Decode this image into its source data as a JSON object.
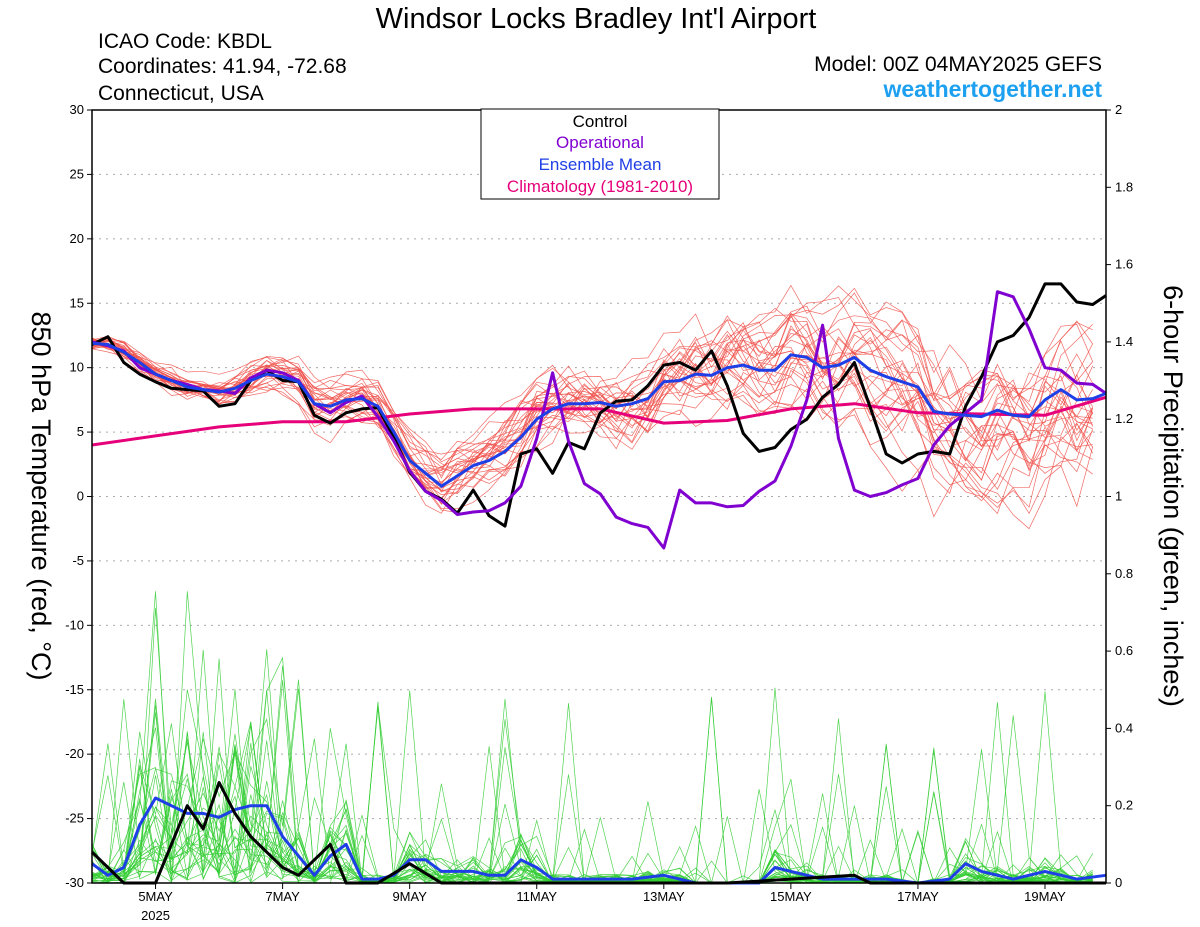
{
  "header": {
    "title": "Windsor Locks Bradley Int'l Airport",
    "icao": "ICAO Code: KBDL",
    "coords": "Coordinates: 41.94, -72.68",
    "location": "Connecticut, USA",
    "model": "Model: 00Z 04MAY2025 GEFS",
    "site": "weathertogether.net"
  },
  "colors": {
    "control": "#000000",
    "operational": "#8000d0",
    "ensemble_mean": "#1f3fe6",
    "climatology": "#e6007a",
    "members_temp": "#f0504a",
    "members_precip": "#33cc33",
    "site": "#1ea0f0"
  },
  "chart_data": {
    "type": "line",
    "title": "Windsor Locks Bradley Int'l Airport",
    "ylabel": "850 hPa Temperature (red, °C)",
    "y2label": "6-hour Precipitation (green, inches)",
    "ylim": [
      -30,
      30
    ],
    "y2lim": [
      0,
      2
    ],
    "yticks": [
      "30",
      "25",
      "20",
      "15",
      "10",
      "5",
      "0",
      "-5",
      "-10",
      "-15",
      "-20",
      "-25",
      "-30"
    ],
    "y2ticks": [
      "2",
      "1.8",
      "1.6",
      "1.4",
      "1.2",
      "1",
      "0.8",
      "0.6",
      "0.4",
      "0.2",
      "0"
    ],
    "xlim_days": [
      4.0,
      19.96
    ],
    "xticks": [
      {
        "day": 5,
        "label": "5MAY",
        "sub": "2025"
      },
      {
        "day": 7,
        "label": "7MAY"
      },
      {
        "day": 9,
        "label": "9MAY"
      },
      {
        "day": 11,
        "label": "11MAY"
      },
      {
        "day": 13,
        "label": "13MAY"
      },
      {
        "day": 15,
        "label": "15MAY"
      },
      {
        "day": 17,
        "label": "17MAY"
      },
      {
        "day": 19,
        "label": "19MAY"
      }
    ],
    "legend": {
      "placement": "top-center",
      "entries": [
        "Control",
        "Operational",
        "Ensemble Mean",
        "Climatology (1981-2010)"
      ]
    },
    "grid": true,
    "series": [
      {
        "name": "Control",
        "axis": "temperature",
        "x": [
          4.0,
          4.25,
          4.5,
          4.75,
          5.0,
          5.25,
          5.5,
          5.75,
          6.0,
          6.25,
          6.5,
          6.75,
          7.0,
          7.25,
          7.5,
          7.75,
          8.0,
          8.25,
          8.5,
          8.75,
          9.0,
          9.25,
          9.5,
          9.75,
          10.0,
          10.25,
          10.5,
          10.75,
          11.0,
          11.25,
          11.5,
          11.75,
          12.0,
          12.25,
          12.5,
          12.75,
          13.0,
          13.25,
          13.5,
          13.75,
          14.0,
          14.25,
          14.5,
          14.75,
          15.0,
          15.25,
          15.5,
          15.75,
          16.0,
          16.25,
          16.5,
          16.75,
          17.0,
          17.25,
          17.5,
          17.75,
          18.0,
          18.25,
          18.5,
          18.75,
          19.0,
          19.25,
          19.5,
          19.75,
          19.96
        ],
        "values": [
          11.8,
          12.4,
          10.4,
          9.5,
          8.9,
          8.4,
          8.3,
          8.2,
          7.0,
          7.2,
          9.0,
          9.8,
          9.0,
          8.9,
          6.3,
          5.7,
          6.5,
          6.8,
          6.9,
          4.6,
          1.9,
          0.4,
          -0.2,
          -1.3,
          0.5,
          -1.5,
          -2.3,
          3.3,
          3.7,
          1.8,
          4.2,
          3.7,
          6.5,
          7.4,
          7.5,
          8.6,
          10.2,
          10.4,
          9.8,
          11.3,
          8.6,
          4.9,
          3.5,
          3.8,
          5.2,
          6.0,
          7.7,
          8.7,
          10.4,
          6.9,
          3.3,
          2.6,
          3.3,
          3.5,
          3.3,
          7.0,
          9.3,
          12.0,
          12.5,
          13.9,
          16.5,
          16.5,
          15.1,
          14.9,
          15.6
        ]
      },
      {
        "name": "Operational",
        "axis": "temperature",
        "x": [
          4.0,
          4.25,
          4.5,
          4.75,
          5.0,
          5.25,
          5.5,
          5.75,
          6.0,
          6.25,
          6.5,
          6.75,
          7.0,
          7.25,
          7.5,
          7.75,
          8.0,
          8.25,
          8.5,
          8.75,
          9.0,
          9.25,
          9.5,
          9.75,
          10.0,
          10.25,
          10.5,
          10.75,
          11.0,
          11.25,
          11.5,
          11.75,
          12.0,
          12.25,
          12.5,
          12.75,
          13.0,
          13.25,
          13.5,
          13.75,
          14.0,
          14.25,
          14.5,
          14.75,
          15.0,
          15.25,
          15.5,
          15.75,
          16.0,
          16.25,
          16.5,
          16.75,
          17.0,
          17.25,
          17.5,
          17.75,
          18.0,
          18.25,
          18.5,
          18.75,
          19.0,
          19.25,
          19.5,
          19.75,
          19.96
        ],
        "values": [
          12.0,
          11.7,
          11.3,
          10.0,
          9.5,
          9.0,
          8.7,
          8.3,
          8.2,
          8.0,
          9.2,
          9.8,
          9.6,
          9.0,
          7.2,
          6.5,
          7.3,
          7.8,
          6.2,
          4.3,
          2.0,
          0.4,
          -0.3,
          -1.4,
          -1.2,
          -1.1,
          -0.5,
          0.8,
          4.5,
          9.6,
          4.3,
          1.0,
          0.2,
          -1.6,
          -2.1,
          -2.4,
          -4.0,
          0.5,
          -0.5,
          -0.5,
          -0.8,
          -0.7,
          0.4,
          1.2,
          3.9,
          7.5,
          13.3,
          4.5,
          0.5,
          0.0,
          0.3,
          0.9,
          1.4,
          4.0,
          5.5,
          6.5,
          7.5,
          15.9,
          15.5,
          13.0,
          10.0,
          9.8,
          8.8,
          8.7,
          8.0
        ]
      },
      {
        "name": "Ensemble Mean",
        "axis": "temperature",
        "x": [
          4.0,
          4.25,
          4.5,
          4.75,
          5.0,
          5.25,
          5.5,
          5.75,
          6.0,
          6.25,
          6.5,
          6.75,
          7.0,
          7.25,
          7.5,
          7.75,
          8.0,
          8.25,
          8.5,
          8.75,
          9.0,
          9.25,
          9.5,
          9.75,
          10.0,
          10.25,
          10.5,
          10.75,
          11.0,
          11.25,
          11.5,
          11.75,
          12.0,
          12.25,
          12.5,
          12.75,
          13.0,
          13.25,
          13.5,
          13.75,
          14.0,
          14.25,
          14.5,
          14.75,
          15.0,
          15.25,
          15.5,
          15.75,
          16.0,
          16.25,
          16.5,
          16.75,
          17.0,
          17.25,
          17.5,
          17.75,
          18.0,
          18.25,
          18.5,
          18.75,
          19.0,
          19.25,
          19.5,
          19.75,
          19.96
        ],
        "values": [
          11.9,
          11.8,
          11.2,
          10.4,
          9.5,
          9.0,
          8.5,
          8.3,
          8.1,
          8.4,
          9.0,
          9.5,
          9.3,
          8.9,
          7.2,
          7.0,
          7.5,
          7.6,
          7.0,
          5.0,
          2.8,
          1.8,
          0.8,
          1.6,
          2.4,
          2.8,
          3.5,
          4.6,
          6.0,
          6.8,
          7.2,
          7.2,
          7.3,
          7.0,
          7.2,
          7.6,
          8.9,
          9.0,
          9.5,
          9.4,
          10.0,
          10.2,
          9.8,
          9.8,
          11.0,
          10.8,
          10.0,
          10.2,
          10.8,
          9.8,
          9.3,
          8.9,
          8.5,
          6.6,
          6.4,
          6.3,
          6.2,
          6.7,
          6.3,
          6.2,
          7.5,
          8.3,
          7.5,
          7.6,
          8.0
        ]
      },
      {
        "name": "Climatology (1981-2010)",
        "axis": "temperature",
        "x": [
          4.0,
          5.0,
          6.0,
          7.0,
          8.0,
          9.0,
          10.0,
          11.0,
          12.0,
          13.0,
          14.0,
          15.0,
          16.0,
          17.0,
          18.0,
          19.0,
          19.96
        ],
        "values": [
          4.0,
          4.7,
          5.4,
          5.8,
          5.8,
          6.4,
          6.8,
          6.8,
          6.8,
          5.7,
          5.9,
          6.8,
          7.2,
          6.5,
          6.4,
          6.3,
          7.7
        ]
      },
      {
        "name": "Ensemble Mean",
        "axis": "precipitation",
        "x": [
          4.0,
          4.25,
          4.5,
          4.75,
          5.0,
          5.25,
          5.5,
          5.75,
          6.0,
          6.25,
          6.5,
          6.75,
          7.0,
          7.25,
          7.5,
          7.75,
          8.0,
          8.25,
          8.5,
          8.75,
          9.0,
          9.25,
          9.5,
          9.75,
          10.0,
          10.25,
          10.5,
          10.75,
          11.0,
          11.25,
          11.5,
          12.0,
          12.5,
          13.0,
          13.5,
          14.0,
          14.5,
          14.75,
          15.0,
          15.5,
          16.0,
          16.5,
          17.0,
          17.5,
          17.75,
          18.0,
          18.5,
          19.0,
          19.5,
          19.96
        ],
        "values": [
          0.05,
          0.02,
          0.04,
          0.15,
          0.22,
          0.2,
          0.18,
          0.18,
          0.17,
          0.19,
          0.2,
          0.2,
          0.12,
          0.07,
          0.02,
          0.07,
          0.1,
          0.01,
          0.01,
          0.02,
          0.06,
          0.06,
          0.03,
          0.03,
          0.03,
          0.02,
          0.02,
          0.06,
          0.04,
          0.01,
          0.01,
          0.01,
          0.01,
          0.02,
          0.0,
          0.0,
          0.0,
          0.04,
          0.03,
          0.01,
          0.01,
          0.01,
          0.0,
          0.01,
          0.05,
          0.03,
          0.01,
          0.03,
          0.01,
          0.02
        ]
      },
      {
        "name": "Control",
        "axis": "precipitation",
        "x": [
          4.0,
          4.25,
          4.5,
          4.75,
          5.0,
          5.25,
          5.5,
          5.75,
          6.0,
          6.25,
          6.5,
          6.75,
          7.0,
          7.25,
          7.5,
          7.75,
          8.0,
          8.5,
          9.0,
          9.5,
          10.0,
          12.0,
          14.0,
          16.0,
          16.25,
          16.5,
          18.0,
          19.96
        ],
        "values": [
          0.08,
          0.04,
          0.0,
          0.0,
          0.0,
          0.1,
          0.2,
          0.14,
          0.26,
          0.18,
          0.12,
          0.08,
          0.04,
          0.02,
          0.06,
          0.1,
          0.0,
          0.0,
          0.05,
          0.0,
          0.0,
          0.0,
          0.0,
          0.02,
          0.0,
          0.0,
          0.0,
          0.0
        ]
      }
    ]
  }
}
